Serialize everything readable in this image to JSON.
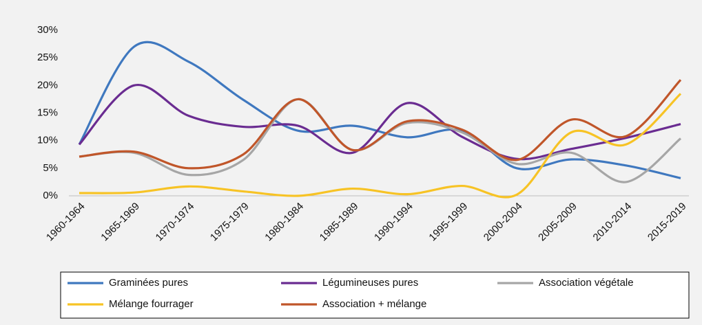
{
  "chart_data": {
    "type": "line",
    "categories": [
      "1960-1964",
      "1965-1969",
      "1970-1974",
      "1975-1979",
      "1980-1984",
      "1985-1989",
      "1990-1994",
      "1995-1999",
      "2000-2004",
      "2005-2009",
      "2010-2014",
      "2015-2019"
    ],
    "series": [
      {
        "name": "Graminées pures",
        "color": "#3f78bf",
        "values": [
          9.3,
          27,
          24.3,
          17.4,
          11.8,
          12.7,
          10.6,
          11.8,
          5,
          6.6,
          5.5,
          3.2
        ]
      },
      {
        "name": "Légumineuses pures",
        "color": "#6a2c91",
        "values": [
          9.3,
          20,
          14.5,
          12.5,
          12.7,
          7.8,
          16.8,
          10.7,
          6.7,
          8.5,
          10.5,
          13
        ]
      },
      {
        "name": "Association végétale",
        "color": "#a6a6a6",
        "values": [
          7.1,
          7.8,
          3.8,
          6.5,
          17.5,
          8.3,
          13.2,
          11.5,
          5.8,
          7.8,
          2.5,
          10.4
        ]
      },
      {
        "name": "Mélange fourrager",
        "color": "#f7c325",
        "values": [
          0.5,
          0.6,
          1.7,
          0.8,
          0,
          1.3,
          0.3,
          1.8,
          0.2,
          11.5,
          9.3,
          18.5
        ]
      },
      {
        "name": "Association + mélange",
        "color": "#c0562a",
        "values": [
          7.1,
          8,
          5,
          7.5,
          17.5,
          8.3,
          13.5,
          12,
          6.5,
          13.8,
          10.8,
          21
        ]
      }
    ],
    "ylim": [
      0,
      30
    ],
    "yticks": [
      {
        "value": 0,
        "label": "0%"
      },
      {
        "value": 5,
        "label": "5%"
      },
      {
        "value": 10,
        "label": "10%"
      },
      {
        "value": 15,
        "label": "15%"
      },
      {
        "value": 20,
        "label": "20%"
      },
      {
        "value": 25,
        "label": "25%"
      },
      {
        "value": 30,
        "label": "30%"
      }
    ],
    "grid": false,
    "smooth": true,
    "legend": "bottom"
  }
}
